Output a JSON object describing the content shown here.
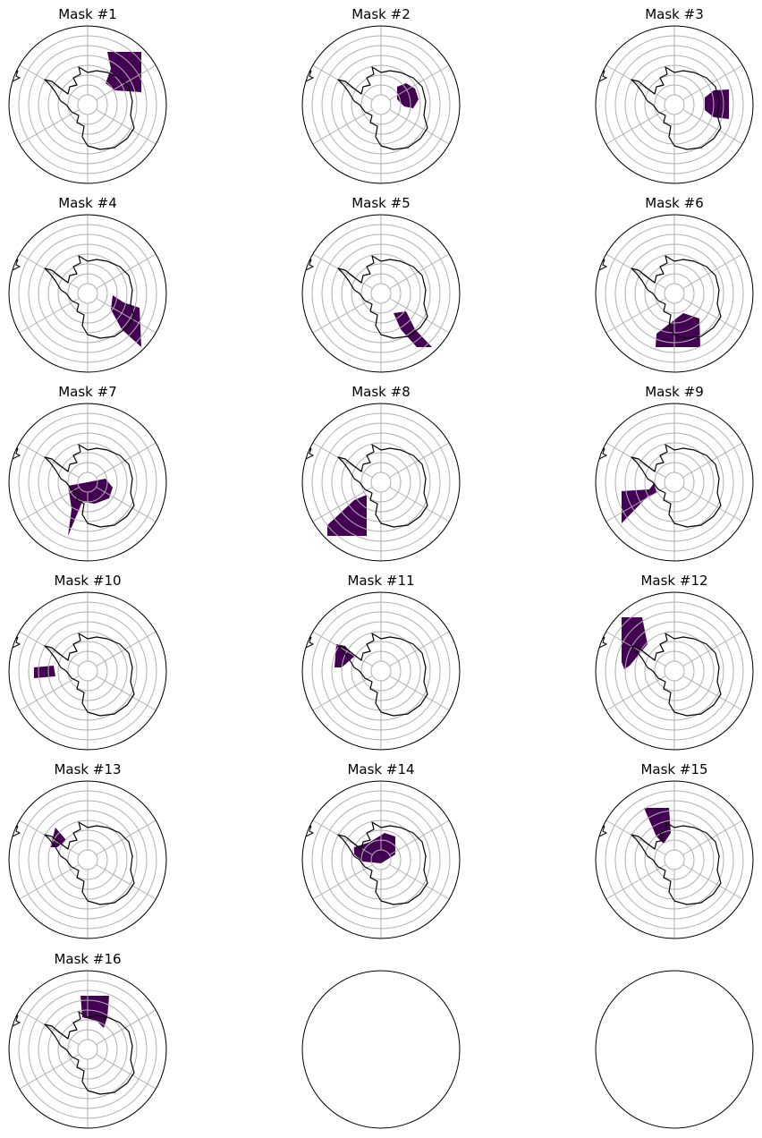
{
  "panels": [
    {
      "title": "Mask #1"
    },
    {
      "title": "Mask #2"
    },
    {
      "title": "Mask #3"
    },
    {
      "title": "Mask #4"
    },
    {
      "title": "Mask #5"
    },
    {
      "title": "Mask #6"
    },
    {
      "title": "Mask #7"
    },
    {
      "title": "Mask #8"
    },
    {
      "title": "Mask #9"
    },
    {
      "title": "Mask #10"
    },
    {
      "title": "Mask #11"
    },
    {
      "title": "Mask #12"
    },
    {
      "title": "Mask #13"
    },
    {
      "title": "Mask #14"
    },
    {
      "title": "Mask #15"
    },
    {
      "title": "Mask #16"
    }
  ]
}
